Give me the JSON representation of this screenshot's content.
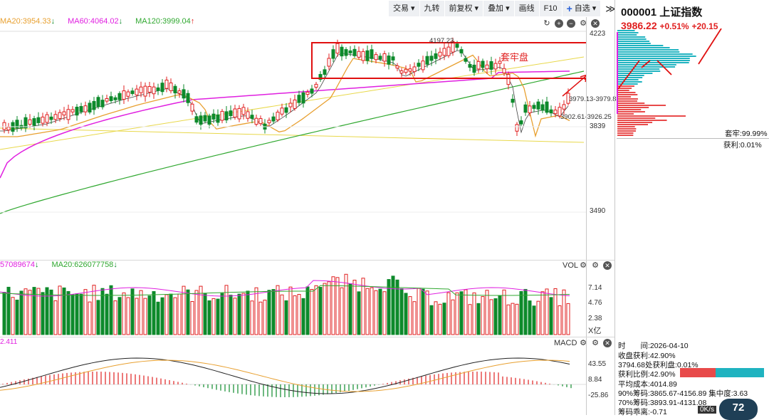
{
  "toolbar": {
    "items": [
      {
        "label": "交易",
        "dropdown": true
      },
      {
        "label": "九转",
        "dropdown": false
      },
      {
        "label": "前复权",
        "dropdown": true
      },
      {
        "label": "叠加",
        "dropdown": true
      },
      {
        "label": "画线",
        "dropdown": false
      },
      {
        "label": "F10",
        "dropdown": false
      },
      {
        "label": "自选",
        "dropdown": true
      }
    ],
    "expand_label": "≫"
  },
  "price_legend": {
    "ma20": "MA20:3954.33",
    "ma60": "MA60:4064.02",
    "ma120": "MA120:3999.04"
  },
  "price_axis": {
    "top": "4223",
    "mid": "3839",
    "low": "3490"
  },
  "annotations": {
    "high_label": "4197.23",
    "box_text": "套牢盘",
    "range1": "3979.13-3979.8",
    "range2": "3902.61-3926.25"
  },
  "volume": {
    "legend_ma5": "57089674",
    "legend_ma20": "MA20:626077758",
    "title": "VOL",
    "axis": {
      "a": "7.14",
      "b": "4.76",
      "c": "2.38",
      "unit": "X亿"
    }
  },
  "macd": {
    "legend": "2.411",
    "title": "MACD",
    "axis": {
      "a": "43.55",
      "b": "8.84",
      "c": "-25.86"
    }
  },
  "panel": {
    "code": "000001",
    "name": "上证指数",
    "price": "3986.22",
    "pct": "+0.51%",
    "change": "+20.15",
    "trapped": "套牢:99.99%",
    "profit": "获利:0.01%",
    "rows": [
      "时　　间:2026-04-10",
      "收盘获利:42.90%",
      "3794.68处获利盘:0.01%",
      "获利比例:42.90%",
      "平均成本:4014.89",
      "90%筹码:3865.67-4156.89",
      "70%筹码:3893.91-4131.08",
      "筹码乖离:-0.71"
    ],
    "concentration90": "集中度:3.63",
    "net_speed": "0K/s",
    "badge": "72"
  },
  "colors": {
    "up": "#e02020",
    "down": "#0d8a2b",
    "ma20": "#e8a030",
    "ma60": "#e020e0",
    "ma120": "#30a830",
    "trend": "#e8d84a",
    "profit_chip": "#e84a4a",
    "trapped_chip": "#1fb3c0"
  }
}
